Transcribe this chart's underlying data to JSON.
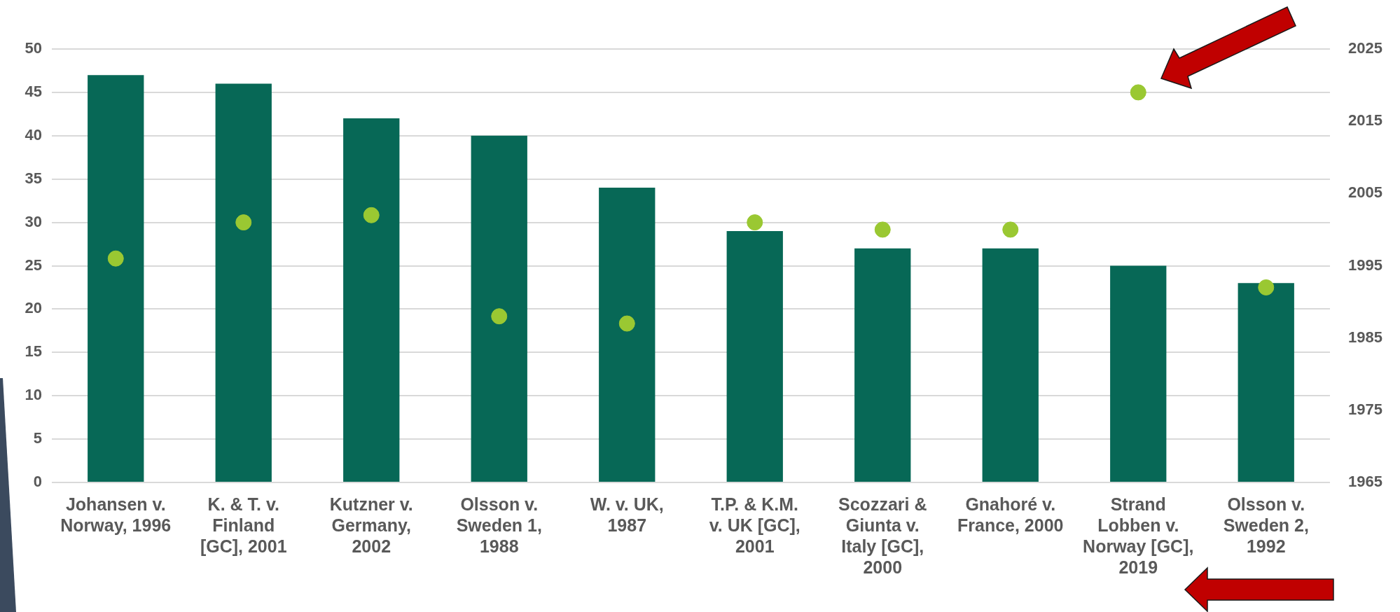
{
  "chart_data": {
    "type": "bar",
    "categories": [
      "Johansen v. Norway, 1996",
      "K. & T. v. Finland [GC], 2001",
      "Kutzner v. Germany, 2002",
      "Olsson v. Sweden 1, 1988",
      "W. v. UK, 1987",
      "T.P. & K.M. v. UK [GC], 2001",
      "Scozzari & Giunta v. Italy [GC], 2000",
      "Gnahoré v. France, 2000",
      "Strand Lobben v. Norway [GC], 2019",
      "Olsson v. Sweden 2, 1992"
    ],
    "series": [
      {
        "color": "#076856",
        "values": [
          47,
          46,
          42,
          40,
          34,
          29,
          27,
          27,
          25,
          23
        ]
      },
      {
        "type": "scatter",
        "axis": "y2",
        "color": "#9ac832",
        "x": [
          "Johansen v. Norway, 1996",
          "K. & T. v. Finland [GC], 2001",
          "Kutzner v. Germany, 2002",
          "Olsson v. Sweden 1, 1988",
          "W. v. UK, 1987",
          "T.P. & K.M. v. UK [GC], 2001",
          "Scozzari & Giunta v. Italy [GC], 2000",
          "Gnahoré v. France, 2000",
          "Strand Lobben v. Norway [GC], 2019",
          "Olsson v. Sweden 2, 1992"
        ],
        "values": [
          1996,
          2001,
          2002,
          1988,
          1987,
          2001,
          2000,
          2000,
          2019,
          1992
        ]
      }
    ],
    "ylim": [
      0,
      50
    ],
    "yticks": [
      0,
      5,
      10,
      15,
      20,
      25,
      30,
      35,
      40,
      45,
      50
    ],
    "y2lim": [
      1965,
      2025
    ],
    "y2ticks": [
      1965,
      1975,
      1985,
      1995,
      2005,
      2015,
      2025
    ],
    "grid": "y",
    "legend": false,
    "marker": "circle"
  }
}
